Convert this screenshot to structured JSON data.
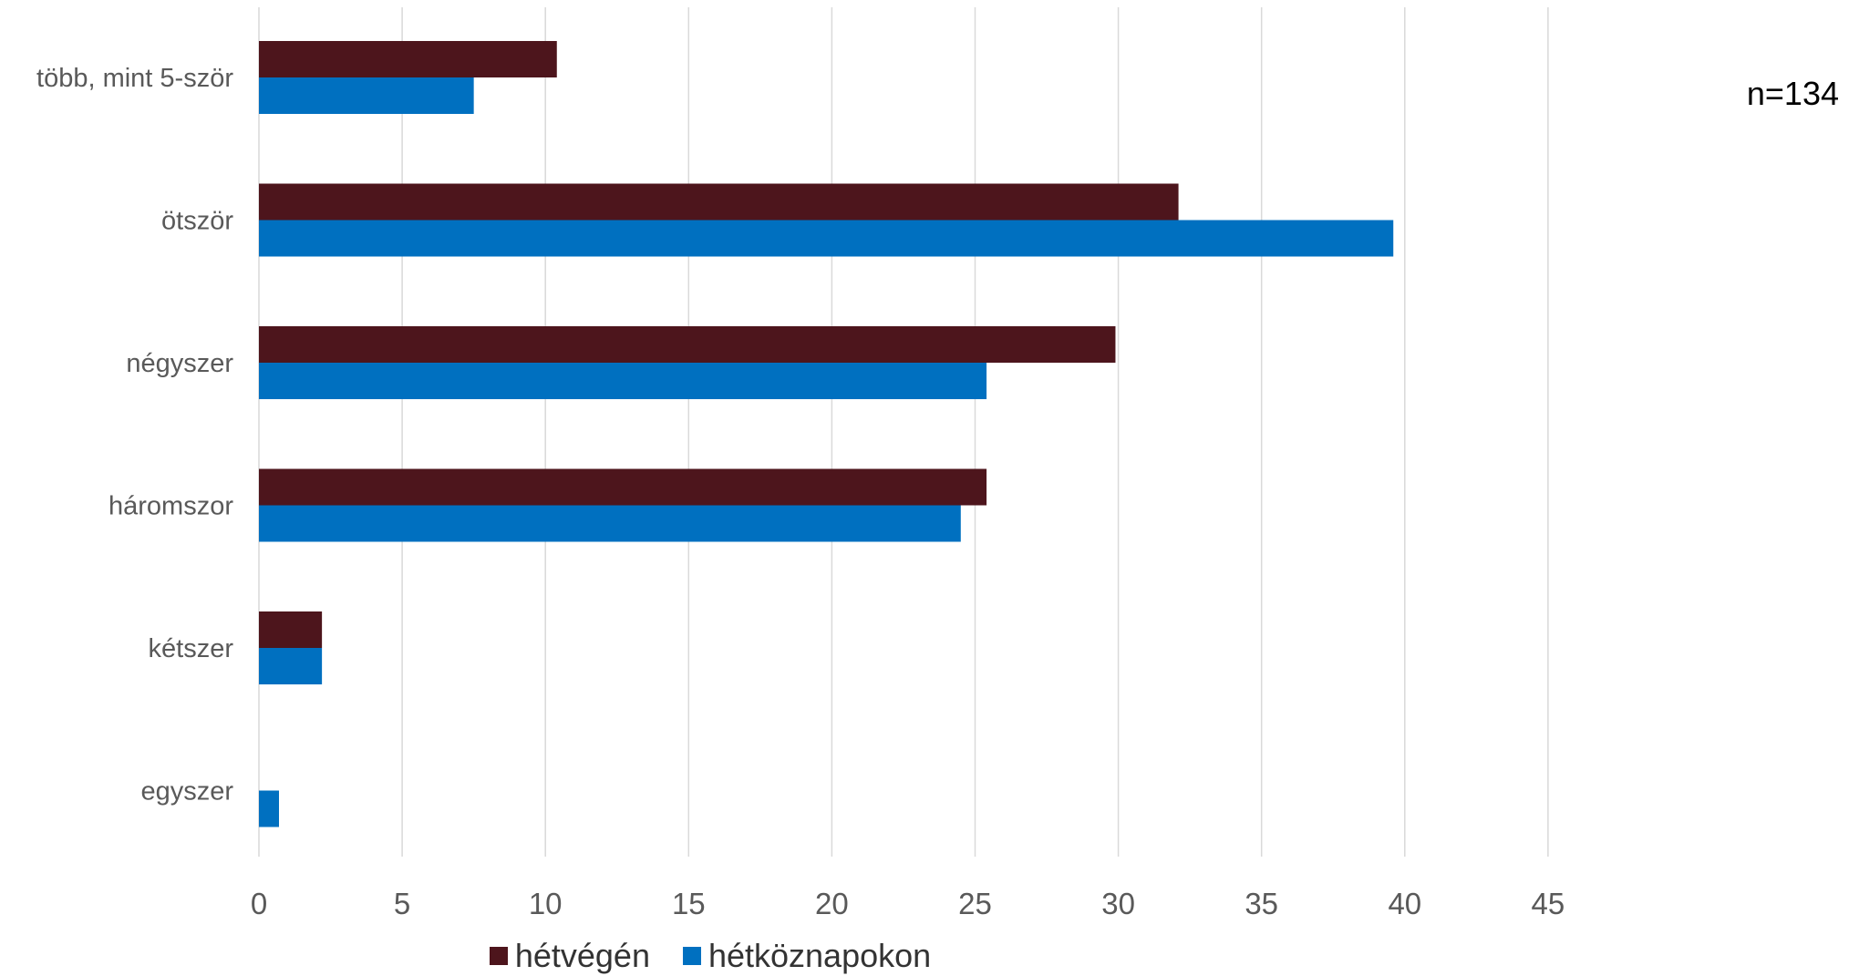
{
  "note": "n=134",
  "chart_data": {
    "type": "bar",
    "orientation": "horizontal",
    "categories": [
      "több, mint 5-ször",
      "ötször",
      "négyszer",
      "háromszor",
      "kétszer",
      "egyszer"
    ],
    "series": [
      {
        "name": "hétvégén",
        "color": "#4d151c",
        "values": [
          10.4,
          32.1,
          29.9,
          25.4,
          2.2,
          0
        ]
      },
      {
        "name": "hétköznapokon",
        "color": "#0070c0",
        "values": [
          7.5,
          39.6,
          25.4,
          24.5,
          2.2,
          0.7
        ]
      }
    ],
    "x_ticks": [
      0,
      5,
      10,
      15,
      20,
      25,
      30,
      35,
      40,
      45
    ],
    "xlim": [
      0,
      45
    ],
    "grid": "vertical",
    "legend_position": "bottom"
  }
}
